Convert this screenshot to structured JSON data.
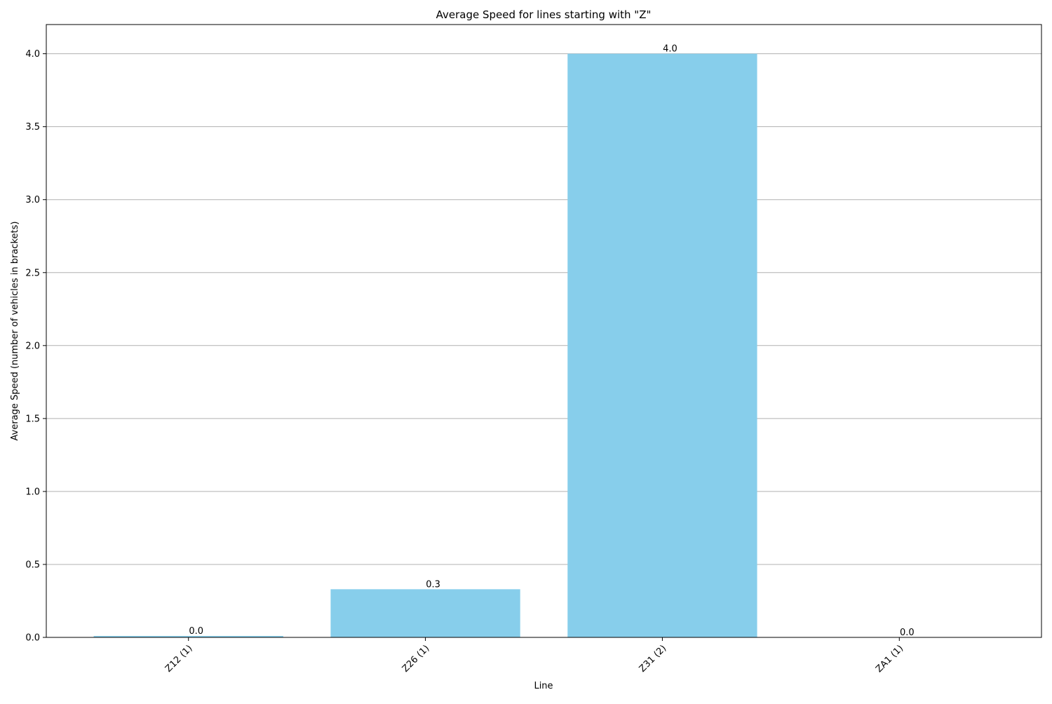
{
  "chart_data": {
    "type": "bar",
    "title": "Average Speed for lines starting with \"Z\"",
    "xlabel": "Line",
    "ylabel": "Average Speed (number of vehicles in brackets)",
    "categories": [
      "Z12 (1)",
      "Z26 (1)",
      "Z31 (2)",
      "ZA1 (1)"
    ],
    "values": [
      0.01,
      0.33,
      4.0,
      0.0
    ],
    "data_labels": [
      "0.0",
      "0.3",
      "4.0",
      "0.0"
    ],
    "ylim": [
      0,
      4.2
    ],
    "yticks": [
      0.0,
      0.5,
      1.0,
      1.5,
      2.0,
      2.5,
      3.0,
      3.5,
      4.0
    ],
    "ytick_labels": [
      "0.0",
      "0.5",
      "1.0",
      "1.5",
      "2.0",
      "2.5",
      "3.0",
      "3.5",
      "4.0"
    ],
    "grid": "y",
    "bar_color": "#87ceeb",
    "grid_color": "#b0b0b0"
  }
}
